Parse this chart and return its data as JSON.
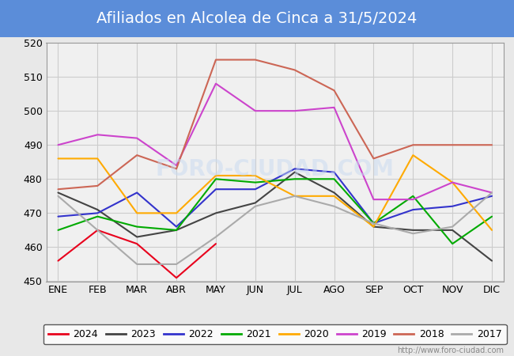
{
  "title": "Afiliados en Alcolea de Cinca a 31/5/2024",
  "title_bg_color": "#5b8dd9",
  "title_text_color": "white",
  "ylim": [
    450,
    520
  ],
  "yticks": [
    450,
    460,
    470,
    480,
    490,
    500,
    510,
    520
  ],
  "months": [
    "ENE",
    "FEB",
    "MAR",
    "ABR",
    "MAY",
    "JUN",
    "JUL",
    "AGO",
    "SEP",
    "OCT",
    "NOV",
    "DIC"
  ],
  "watermark": "http://www.foro-ciudad.com",
  "series": {
    "2024": {
      "color": "#e8001c",
      "data": [
        456,
        465,
        461,
        451,
        461,
        null,
        null,
        null,
        null,
        null,
        null,
        null
      ]
    },
    "2023": {
      "color": "#444444",
      "data": [
        476,
        471,
        463,
        465,
        470,
        473,
        482,
        476,
        466,
        465,
        465,
        456
      ]
    },
    "2022": {
      "color": "#3333cc",
      "data": [
        469,
        470,
        476,
        466,
        477,
        477,
        483,
        482,
        467,
        471,
        472,
        475
      ]
    },
    "2021": {
      "color": "#00aa00",
      "data": [
        465,
        469,
        466,
        465,
        480,
        479,
        480,
        480,
        467,
        475,
        461,
        469
      ]
    },
    "2020": {
      "color": "#ffaa00",
      "data": [
        486,
        486,
        470,
        470,
        481,
        481,
        475,
        475,
        466,
        487,
        479,
        465
      ]
    },
    "2019": {
      "color": "#cc44cc",
      "data": [
        490,
        493,
        492,
        484,
        508,
        500,
        500,
        501,
        474,
        474,
        479,
        476
      ]
    },
    "2018": {
      "color": "#cc6655",
      "data": [
        477,
        478,
        487,
        483,
        515,
        515,
        512,
        506,
        486,
        490,
        490,
        490
      ]
    },
    "2017": {
      "color": "#aaaaaa",
      "data": [
        475,
        465,
        455,
        455,
        463,
        472,
        475,
        472,
        467,
        464,
        466,
        476
      ]
    }
  },
  "legend_order": [
    "2024",
    "2023",
    "2022",
    "2021",
    "2020",
    "2019",
    "2018",
    "2017"
  ],
  "background_color": "#e8e8e8",
  "plot_bg_color": "#f0f0f0",
  "grid_color": "#cccccc",
  "title_font_size": 14
}
